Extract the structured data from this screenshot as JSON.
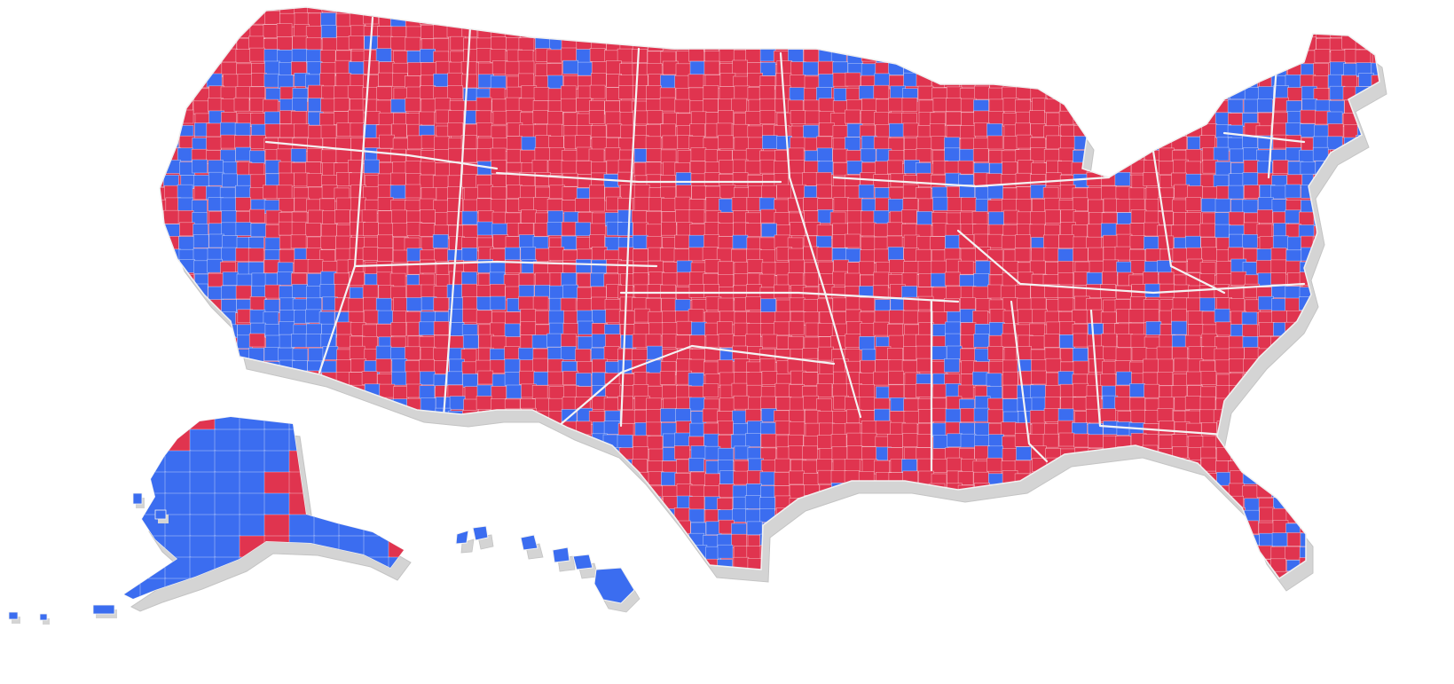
{
  "map": {
    "colors": {
      "red": "#e0344f",
      "blue": "#3b6df0",
      "border": "#f2f2f2",
      "shadow": "#d4d4d4",
      "background": "#ffffff"
    },
    "regions": [
      {
        "id": "contiguous-us",
        "base": "red"
      },
      {
        "id": "alaska",
        "base": "blue"
      },
      {
        "id": "hawaii",
        "base": "blue"
      }
    ]
  }
}
